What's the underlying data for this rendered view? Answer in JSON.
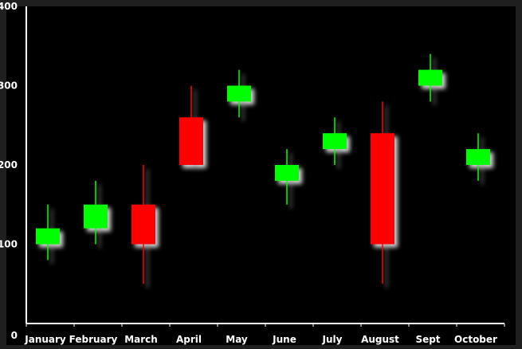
{
  "chart_data": {
    "type": "candlestick",
    "title": "",
    "xlabel": "",
    "ylabel": "",
    "ylim": [
      0,
      400
    ],
    "yticks": [
      0,
      100,
      200,
      300,
      400
    ],
    "ytick_labels": [
      "0",
      "100",
      "200",
      "300",
      "400"
    ],
    "grid": false,
    "legend": "none",
    "colors": {
      "background": "#000000",
      "frame": "#1f1f1f",
      "axis": "#ffffff",
      "label": "#ffffff",
      "up": "#00ff00",
      "down": "#ff0000",
      "shadow": "#ffffff"
    },
    "categories": [
      "January",
      "February",
      "March",
      "April",
      "May",
      "June",
      "July",
      "August",
      "Sept",
      "October"
    ],
    "series": [
      {
        "candles": [
          {
            "open": 100,
            "high": 150,
            "low": 80,
            "close": 120
          },
          {
            "open": 120,
            "high": 180,
            "low": 100,
            "close": 150
          },
          {
            "open": 150,
            "high": 200,
            "low": 50,
            "close": 100
          },
          {
            "open": 260,
            "high": 300,
            "low": 200,
            "close": 200
          },
          {
            "open": 280,
            "high": 320,
            "low": 260,
            "close": 300
          },
          {
            "open": 180,
            "high": 220,
            "low": 150,
            "close": 200
          },
          {
            "open": 220,
            "high": 260,
            "low": 200,
            "close": 240
          },
          {
            "open": 240,
            "high": 280,
            "low": 50,
            "close": 100
          },
          {
            "open": 300,
            "high": 340,
            "low": 280,
            "close": 320
          },
          {
            "open": 200,
            "high": 240,
            "low": 180,
            "close": 220
          }
        ]
      }
    ]
  }
}
